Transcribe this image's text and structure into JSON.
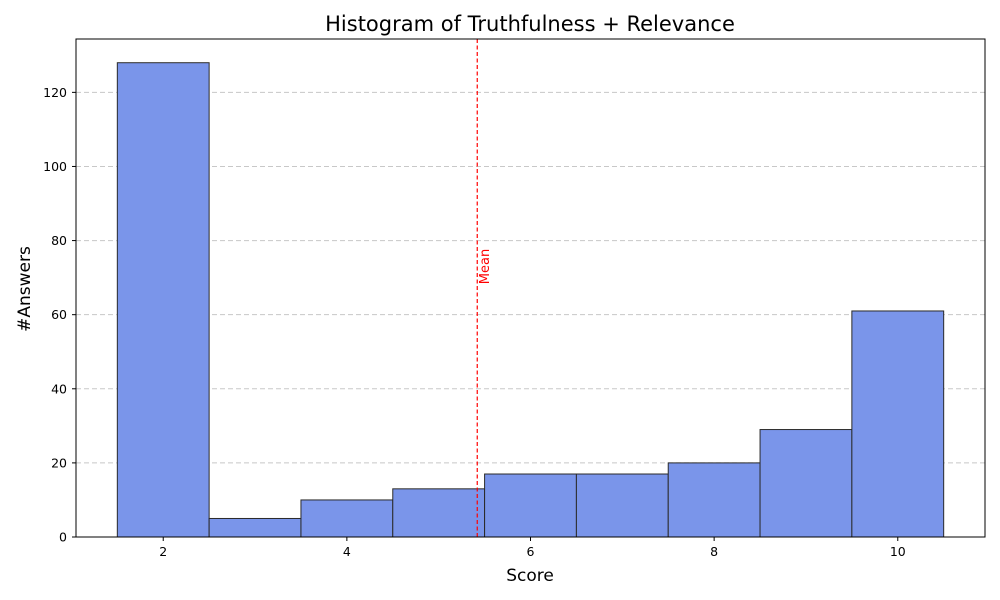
{
  "chart_data": {
    "type": "bar",
    "title": "Histogram of Truthfulness + Relevance",
    "xlabel": "Score",
    "ylabel": "#Answers",
    "bins": [
      {
        "x": 2,
        "count": 128
      },
      {
        "x": 3,
        "count": 5
      },
      {
        "x": 4,
        "count": 10
      },
      {
        "x": 5,
        "count": 13
      },
      {
        "x": 6,
        "count": 17
      },
      {
        "x": 7,
        "count": 17
      },
      {
        "x": 8,
        "count": 20
      },
      {
        "x": 9,
        "count": 29
      },
      {
        "x": 10,
        "count": 61
      }
    ],
    "bin_width": 1,
    "xlim": [
      1.05,
      10.95
    ],
    "ylim": [
      0,
      134.4
    ],
    "xticks": [
      2,
      4,
      6,
      8,
      10
    ],
    "yticks": [
      0,
      20,
      40,
      60,
      80,
      100,
      120
    ],
    "grid": {
      "y": true,
      "style": "dashed"
    },
    "mean_line": {
      "x": 5.42,
      "label": "Mean",
      "color": "#ff0000"
    },
    "colors": {
      "bar_fill": "#7a95ea",
      "bar_edge": "#2a2a2a",
      "grid": "#c8c8c8"
    }
  }
}
